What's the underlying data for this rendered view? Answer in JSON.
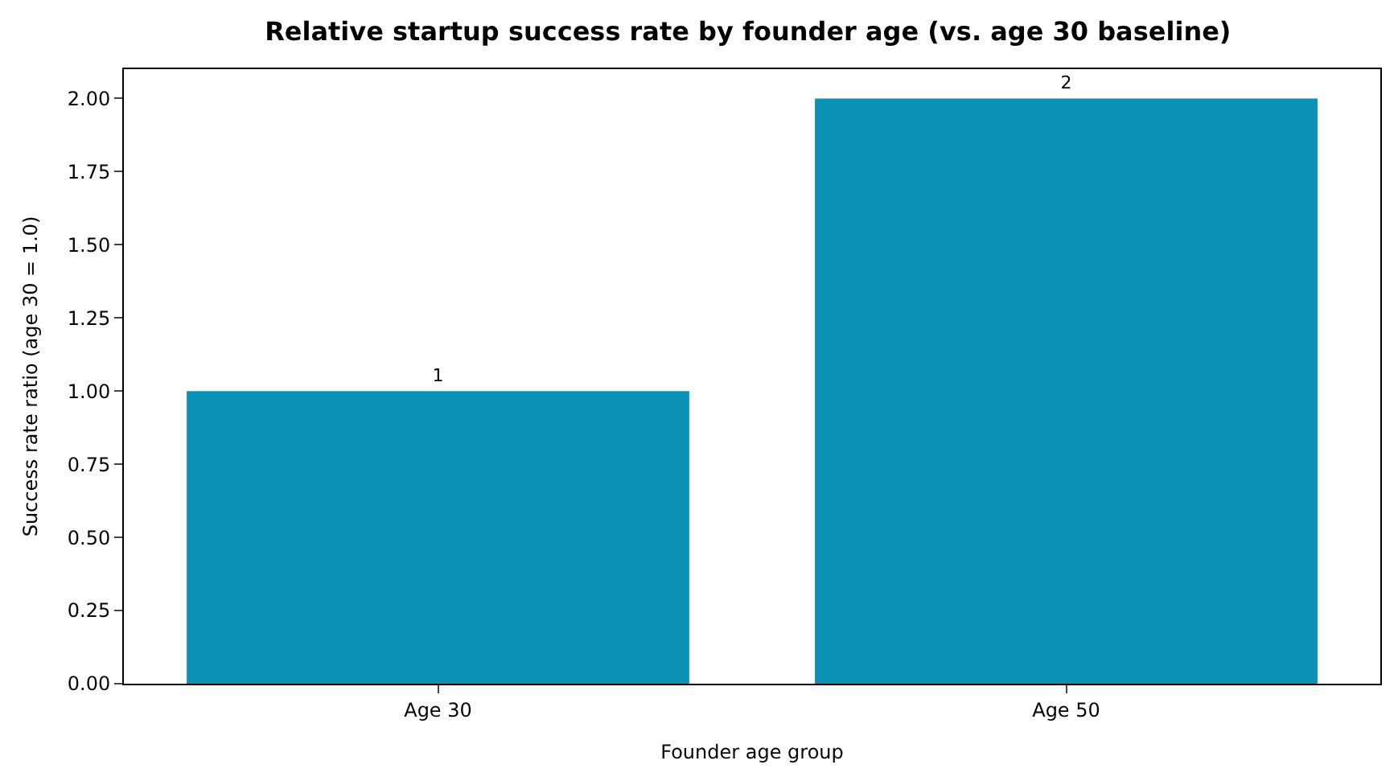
{
  "chart_data": {
    "type": "bar",
    "title": "Relative startup success rate by founder age (vs. age 30 baseline)",
    "xlabel": "Founder age group",
    "ylabel": "Success rate ratio (age 30 = 1.0)",
    "categories": [
      "Age 30",
      "Age 50"
    ],
    "values": [
      1,
      2
    ],
    "color": "#0a91b5",
    "ylim": [
      0,
      2.1
    ],
    "yticks": [
      {
        "value": 0,
        "label": "0.00"
      },
      {
        "value": 0.25,
        "label": "0.25"
      },
      {
        "value": 0.5,
        "label": "0.50"
      },
      {
        "value": 0.75,
        "label": "0.75"
      },
      {
        "value": 1,
        "label": "1.00"
      },
      {
        "value": 1.25,
        "label": "1.25"
      },
      {
        "value": 1.5,
        "label": "1.50"
      },
      {
        "value": 1.75,
        "label": "1.75"
      },
      {
        "value": 2,
        "label": "2.00"
      }
    ],
    "data_labels": true
  }
}
